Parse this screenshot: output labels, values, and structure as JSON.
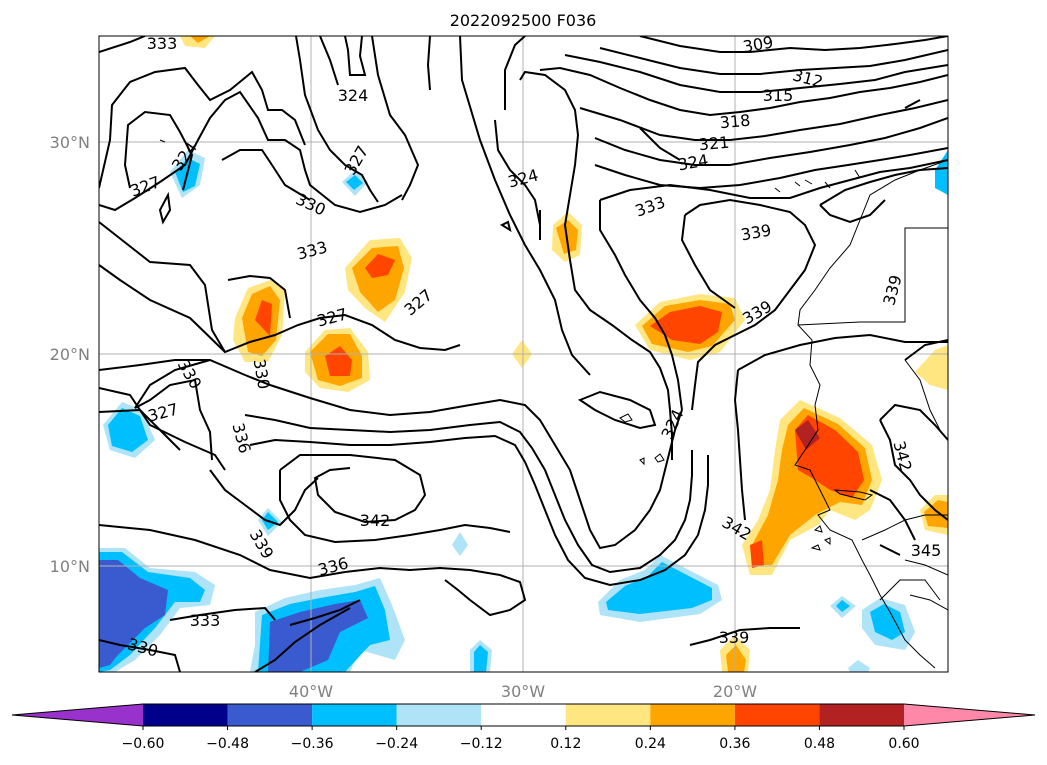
{
  "title": "2022092500 F036",
  "lat_ticks": [
    "30°N",
    "20°N",
    "10°N"
  ],
  "lon_ticks": [
    "40°W",
    "30°W",
    "20°W"
  ],
  "contour_labels": [
    "333",
    "324",
    "327",
    "324",
    "330",
    "333",
    "327",
    "327",
    "330",
    "330",
    "327",
    "336",
    "342",
    "339",
    "336",
    "333",
    "330",
    "324",
    "309",
    "312",
    "315",
    "318",
    "321",
    "324",
    "333",
    "339",
    "339",
    "339",
    "324",
    "342",
    "342",
    "345",
    "339"
  ],
  "colorbar": {
    "ticks": [
      "−0.60",
      "−0.48",
      "−0.36",
      "−0.24",
      "−0.12",
      "0.12",
      "0.24",
      "0.36",
      "0.48",
      "0.60"
    ],
    "colors": [
      "#9932CC",
      "#00008B",
      "#3A5BCF",
      "#00BFFF",
      "#AEE3F8",
      "#FFFFFF",
      "#FFE680",
      "#FFA500",
      "#FF4500",
      "#B22222",
      "#FF88A8"
    ]
  }
}
